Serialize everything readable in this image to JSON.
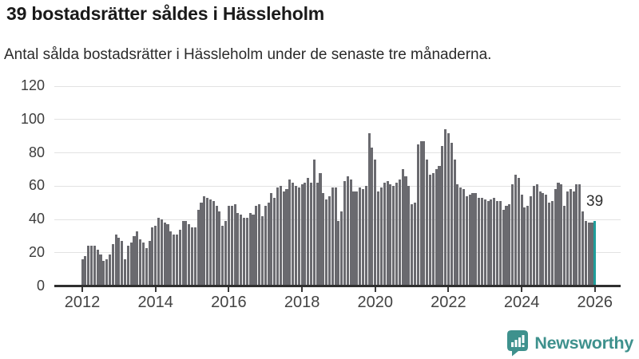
{
  "header": {
    "title": "39 bostadsrätter såldes i Hässleholm",
    "subtitle": "Antal sålda bostadsrätter i Hässleholm under de senaste tre månaderna."
  },
  "chart_data": {
    "type": "bar",
    "title": "39 bostadsrätter såldes i Hässleholm",
    "xlabel": "",
    "ylabel": "",
    "x_unit": "month",
    "x_start": "2012-01",
    "x_end": "2025-12",
    "grid": true,
    "ylim": [
      0,
      120
    ],
    "y_ticks": [
      0,
      20,
      40,
      60,
      80,
      100,
      120
    ],
    "x_tick_labels": [
      "2012",
      "2014",
      "2016",
      "2018",
      "2020",
      "2022",
      "2024",
      "2026"
    ],
    "bar_color": "#6a6a6f",
    "highlight_color": "#1f9e9b",
    "values": [
      16,
      18,
      24,
      24,
      24,
      22,
      19,
      15,
      16,
      19,
      25,
      31,
      29,
      27,
      16,
      24,
      26,
      30,
      33,
      28,
      26,
      23,
      27,
      35,
      36,
      41,
      40,
      38,
      37,
      33,
      31,
      31,
      34,
      39,
      39,
      37,
      35,
      35,
      46,
      50,
      54,
      53,
      52,
      51,
      48,
      45,
      36,
      39,
      48,
      48,
      49,
      44,
      43,
      41,
      41,
      44,
      43,
      48,
      49,
      42,
      48,
      50,
      56,
      53,
      59,
      60,
      57,
      58,
      64,
      62,
      60,
      59,
      61,
      62,
      65,
      62,
      76,
      62,
      68,
      56,
      52,
      54,
      59,
      59,
      39,
      45,
      63,
      66,
      64,
      57,
      57,
      59,
      58,
      60,
      92,
      83,
      76,
      57,
      59,
      62,
      63,
      61,
      60,
      62,
      64,
      70,
      66,
      60,
      49,
      50,
      85,
      87,
      87,
      76,
      67,
      68,
      70,
      72,
      84,
      94,
      92,
      86,
      76,
      61,
      59,
      58,
      54,
      55,
      56,
      56,
      53,
      53,
      52,
      51,
      52,
      53,
      51,
      51,
      46,
      48,
      49,
      61,
      67,
      65,
      55,
      47,
      48,
      54,
      60,
      61,
      57,
      56,
      55,
      50,
      51,
      58,
      62,
      61,
      48,
      57,
      58,
      57,
      61,
      61,
      45,
      39,
      38,
      38
    ],
    "highlight": {
      "x": "2026-01",
      "value": 39,
      "label": "39"
    }
  },
  "footer": {
    "brand": "Newsworthy",
    "brand_color": "#3e918d"
  }
}
